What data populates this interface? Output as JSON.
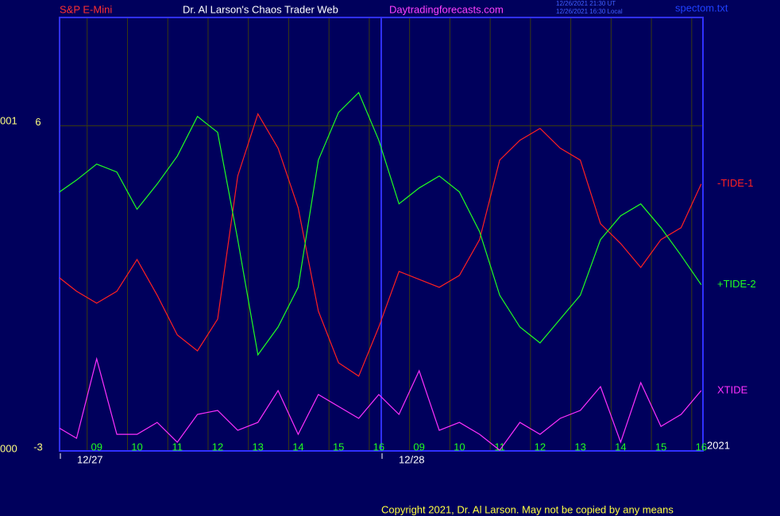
{
  "header": {
    "symbol": "S&P E-Mini",
    "site": "Dr. Al Larson's Chaos Trader Web",
    "url": "Daytradingforecasts.com",
    "time_ut": "12/26/2021 21:30 UT",
    "time_local": "12/26/2021 16:30 Local",
    "file": "spectom.txt"
  },
  "left_labels": [
    "001",
    "000"
  ],
  "dates": [
    "12/27",
    "12/28"
  ],
  "year": "2021",
  "footer": "Copyright 2021, Dr. Al Larson. May not be copied by any means",
  "chart_data": {
    "type": "line",
    "categories": [
      null,
      null,
      "09",
      null,
      "10",
      null,
      "11",
      null,
      "12",
      null,
      "13",
      null,
      "14",
      null,
      "15",
      null,
      "16",
      null,
      "09",
      null,
      "10",
      null,
      "11",
      null,
      "12",
      null,
      "13",
      null,
      "14",
      null,
      "15",
      null,
      "16"
    ],
    "ylim": [
      -3,
      9
    ],
    "yticks": [
      6,
      -3
    ],
    "grid": true,
    "series": [
      {
        "name": "-TIDE-1",
        "color": "#ff2020",
        "values": [
          1.86,
          1.42,
          1.09,
          1.42,
          2.3,
          1.31,
          0.21,
          -0.23,
          0.65,
          4.61,
          6.33,
          5.38,
          3.73,
          0.87,
          -0.56,
          -0.93,
          0.43,
          1.97,
          1.75,
          1.53,
          1.86,
          2.85,
          5.05,
          5.6,
          5.93,
          5.38,
          5.05,
          3.29,
          2.74,
          2.08,
          2.85,
          3.18,
          4.39
        ]
      },
      {
        "name": "+TIDE-2",
        "color": "#20ff20",
        "values": [
          4.11,
          4.5,
          4.94,
          4.72,
          3.69,
          4.39,
          5.16,
          6.26,
          5.82,
          2.85,
          -0.34,
          0.43,
          1.53,
          5.05,
          6.37,
          6.92,
          5.6,
          3.84,
          4.28,
          4.61,
          4.17,
          3.07,
          1.31,
          0.43,
          -0.01,
          0.65,
          1.31,
          2.85,
          3.51,
          3.84,
          3.18,
          2.41,
          1.6
        ]
      },
      {
        "name": "XTIDE",
        "color": "#ff30ff",
        "values": [
          -2.32,
          -2.65,
          -0.45,
          -2.54,
          -2.54,
          -2.21,
          -2.76,
          -1.99,
          -1.88,
          -2.43,
          -2.21,
          -1.33,
          -2.54,
          -1.44,
          -1.77,
          -2.1,
          -1.44,
          -1.99,
          -0.78,
          -2.43,
          -2.21,
          -2.54,
          -2.98,
          -2.21,
          -2.54,
          -2.1,
          -1.88,
          -1.22,
          -2.76,
          -1.11,
          -2.32,
          -1.99,
          -1.33
        ]
      }
    ]
  }
}
